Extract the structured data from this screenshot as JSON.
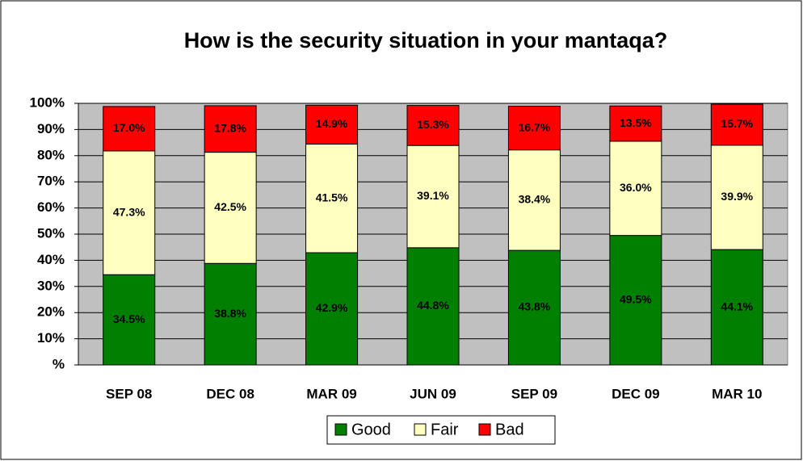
{
  "chart_data": {
    "type": "stacked_bar",
    "title": "How is the security situation in your mantaqa?",
    "categories": [
      "SEP 08",
      "DEC 08",
      "MAR 09",
      "JUN 09",
      "SEP 09",
      "DEC 09",
      "MAR 10"
    ],
    "series": [
      {
        "name": "Good",
        "color": "#007f00",
        "values": [
          34.5,
          38.8,
          42.9,
          44.8,
          43.8,
          49.5,
          44.1
        ],
        "value_labels": [
          "34.5%",
          "38.8%",
          "42.9%",
          "44.8%",
          "43.8%",
          "49.5%",
          "44.1%"
        ]
      },
      {
        "name": "Fair",
        "color": "#ffffc0",
        "values": [
          47.3,
          42.5,
          41.5,
          39.1,
          38.4,
          36.0,
          39.9
        ],
        "value_labels": [
          "47.3%",
          "42.5%",
          "41.5%",
          "39.1%",
          "38.4%",
          "36.0%",
          "39.9%"
        ]
      },
      {
        "name": "Bad",
        "color": "#ff0000",
        "values": [
          17.0,
          17.8,
          14.9,
          15.3,
          16.7,
          13.5,
          15.7
        ],
        "value_labels": [
          "17.0%",
          "17.8%",
          "14.9%",
          "15.3%",
          "16.7%",
          "13.5%",
          "15.7%"
        ]
      }
    ],
    "ylim": [
      0,
      100
    ],
    "yticks": [
      {
        "value": 0,
        "label": "%"
      },
      {
        "value": 10,
        "label": "10%"
      },
      {
        "value": 20,
        "label": "20%"
      },
      {
        "value": 30,
        "label": "30%"
      },
      {
        "value": 40,
        "label": "40%"
      },
      {
        "value": 50,
        "label": "50%"
      },
      {
        "value": 60,
        "label": "60%"
      },
      {
        "value": 70,
        "label": "70%"
      },
      {
        "value": 80,
        "label": "80%"
      },
      {
        "value": 90,
        "label": "90%"
      },
      {
        "value": 100,
        "label": "100%"
      }
    ],
    "grid": true,
    "legend": "bottom"
  }
}
